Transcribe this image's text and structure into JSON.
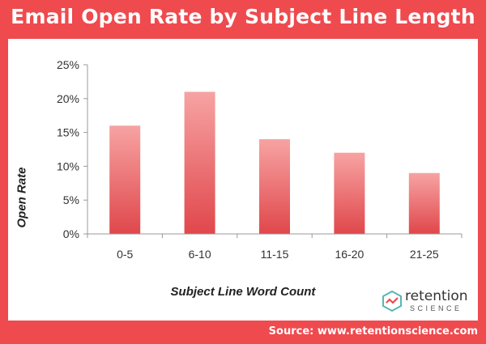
{
  "title": "Email Open Rate by Subject Line Length",
  "source": "Source: www.retentionscience.com",
  "logo": {
    "word1": "retention",
    "word2": "SCIENCE"
  },
  "colors": {
    "background": "#ef4a4e",
    "bar_top": "#f79d9d",
    "bar_bottom": "#e0474b"
  },
  "chart_data": {
    "type": "bar",
    "categories": [
      "0-5",
      "6-10",
      "11-15",
      "16-20",
      "21-25"
    ],
    "values": [
      16,
      21,
      14,
      12,
      9
    ],
    "yticks": [
      "0%",
      "5%",
      "10%",
      "15%",
      "20%",
      "25%"
    ],
    "ylim": [
      0,
      25
    ],
    "xlabel": "Subject Line Word Count",
    "ylabel": "Open Rate",
    "grid": false,
    "legend": "none"
  }
}
